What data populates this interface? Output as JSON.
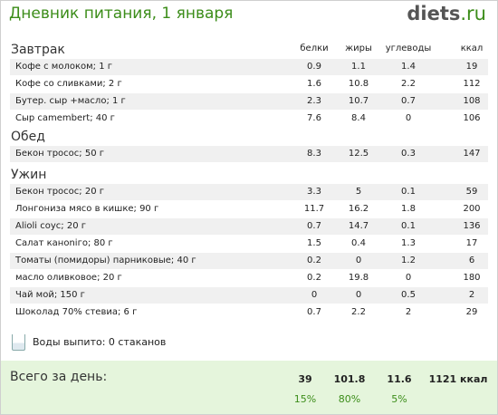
{
  "header": {
    "title": "Дневник питания, 1 января",
    "logo_name": "diets",
    "logo_tld": ".ru"
  },
  "columns": {
    "protein": "белки",
    "fat": "жиры",
    "carbs": "углеводы",
    "kcal": "ккал"
  },
  "meals": [
    {
      "name": "Завтрак",
      "items": [
        {
          "name": "Кофе с молоком; 1 г",
          "protein": "0.9",
          "fat": "1.1",
          "carbs": "1.4",
          "kcal": "19"
        },
        {
          "name": "Кофе со сливками; 2 г",
          "protein": "1.6",
          "fat": "10.8",
          "carbs": "2.2",
          "kcal": "112"
        },
        {
          "name": "Бутер. сыр +масло; 1 г",
          "protein": "2.3",
          "fat": "10.7",
          "carbs": "0.7",
          "kcal": "108"
        },
        {
          "name": "Сыр camembert; 40 г",
          "protein": "7.6",
          "fat": "8.4",
          "carbs": "0",
          "kcal": "106"
        }
      ]
    },
    {
      "name": "Обед",
      "items": [
        {
          "name": "Бекон тросос; 50 г",
          "protein": "8.3",
          "fat": "12.5",
          "carbs": "0.3",
          "kcal": "147"
        }
      ]
    },
    {
      "name": "Ужин",
      "items": [
        {
          "name": "Бекон тросос; 20 г",
          "protein": "3.3",
          "fat": "5",
          "carbs": "0.1",
          "kcal": "59"
        },
        {
          "name": "Лонгониза мясо в кишке; 90 г",
          "protein": "11.7",
          "fat": "16.2",
          "carbs": "1.8",
          "kcal": "200"
        },
        {
          "name": "Alioli соус; 20 г",
          "protein": "0.7",
          "fat": "14.7",
          "carbs": "0.1",
          "kcal": "136"
        },
        {
          "name": "Салат каноniго; 80 г",
          "protein": "1.5",
          "fat": "0.4",
          "carbs": "1.3",
          "kcal": "17"
        },
        {
          "name": "Томаты (помидоры) парниковые; 40 г",
          "protein": "0.2",
          "fat": "0",
          "carbs": "1.2",
          "kcal": "6"
        },
        {
          "name": "масло оливковое; 20 г",
          "protein": "0.2",
          "fat": "19.8",
          "carbs": "0",
          "kcal": "180"
        },
        {
          "name": "Чай мой; 150 г",
          "protein": "0",
          "fat": "0",
          "carbs": "0.5",
          "kcal": "2"
        },
        {
          "name": "Шоколад 70% стевиа; 6 г",
          "protein": "0.7",
          "fat": "2.2",
          "carbs": "2",
          "kcal": "29"
        }
      ]
    }
  ],
  "water": {
    "text": "Воды выпито: 0 стаканов",
    "icon": "glass-icon"
  },
  "total": {
    "label": "Всего за день:",
    "protein": "39",
    "fat": "101.8",
    "carbs": "11.6",
    "kcal": "1121 ккал",
    "protein_pct": "15%",
    "fat_pct": "80%",
    "carbs_pct": "5%"
  },
  "colors": {
    "accent": "#3c8d1a",
    "total_bg": "#e5f5dc",
    "row_alt": "#f0f0f0"
  }
}
